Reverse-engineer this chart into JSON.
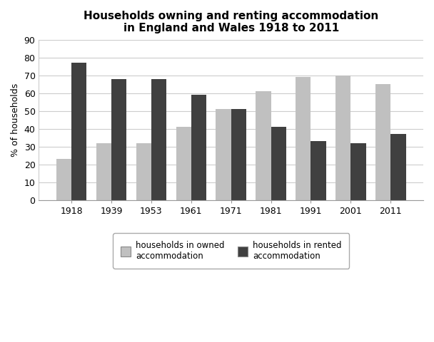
{
  "title": "Households owning and renting accommodation\nin England and Wales 1918 to 2011",
  "ylabel": "% of households",
  "years": [
    "1918",
    "1939",
    "1953",
    "1961",
    "1971",
    "1981",
    "1991",
    "2001",
    "2011"
  ],
  "owned": [
    23,
    32,
    32,
    41,
    51,
    61,
    69,
    70,
    65
  ],
  "rented": [
    77,
    68,
    68,
    59,
    51,
    41,
    33,
    32,
    37
  ],
  "owned_color": "#c0c0c0",
  "rented_color": "#404040",
  "ylim": [
    0,
    90
  ],
  "yticks": [
    0,
    10,
    20,
    30,
    40,
    50,
    60,
    70,
    80,
    90
  ],
  "bar_width": 0.38,
  "legend_owned": "households in owned\naccommodation",
  "legend_rented": "households in rented\naccommodation",
  "title_fontsize": 11,
  "label_fontsize": 9,
  "tick_fontsize": 9,
  "legend_fontsize": 8.5,
  "bg_color": "#ffffff"
}
